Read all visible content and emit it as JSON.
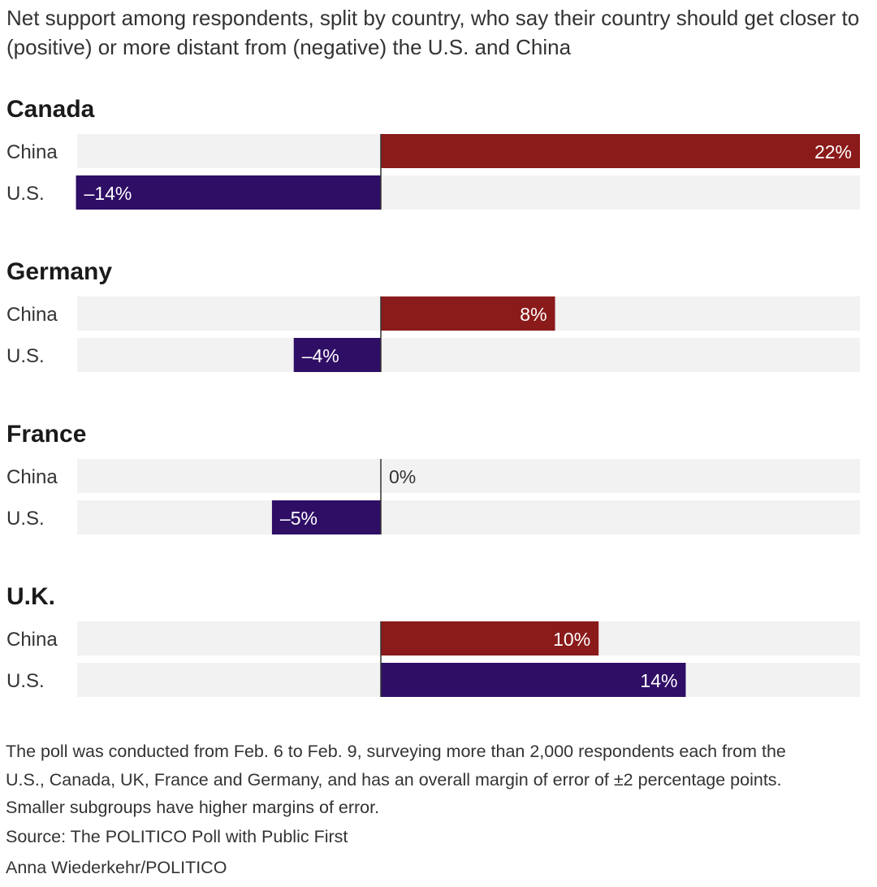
{
  "chart_data": {
    "type": "bar",
    "orientation": "horizontal",
    "subtitle": "Net support among respondents, split by country, who say their country should get closer to (positive) or more distant from (negative) the U.S. and China",
    "value_format": "percent",
    "xlim": [
      -14,
      22
    ],
    "colors": {
      "China": "#8b1a1a",
      "U.S.": "#2f0e66",
      "track": "#f2f2f2",
      "axis": "#333333"
    },
    "panels": [
      {
        "country": "Canada",
        "bars": [
          {
            "label": "China",
            "value": 22,
            "display": "22%"
          },
          {
            "label": "U.S.",
            "value": -14,
            "display": "–14%"
          }
        ]
      },
      {
        "country": "Germany",
        "bars": [
          {
            "label": "China",
            "value": 8,
            "display": "8%"
          },
          {
            "label": "U.S.",
            "value": -4,
            "display": "–4%"
          }
        ]
      },
      {
        "country": "France",
        "bars": [
          {
            "label": "China",
            "value": 0,
            "display": "0%"
          },
          {
            "label": "U.S.",
            "value": -5,
            "display": "–5%"
          }
        ]
      },
      {
        "country": "U.K.",
        "bars": [
          {
            "label": "China",
            "value": 10,
            "display": "10%"
          },
          {
            "label": "U.S.",
            "value": 14,
            "display": "14%"
          }
        ]
      }
    ],
    "footnote": [
      "The poll was conducted from Feb. 6 to Feb. 9, surveying more than 2,000 respondents each from the",
      "U.S., Canada, UK, France and Germany, and has an overall margin of error of ±2 percentage points.",
      "Smaller subgroups have higher margins of error."
    ],
    "source": "Source: The POLITICO Poll with Public First",
    "credit": "Anna Wiederkehr/POLITICO"
  }
}
